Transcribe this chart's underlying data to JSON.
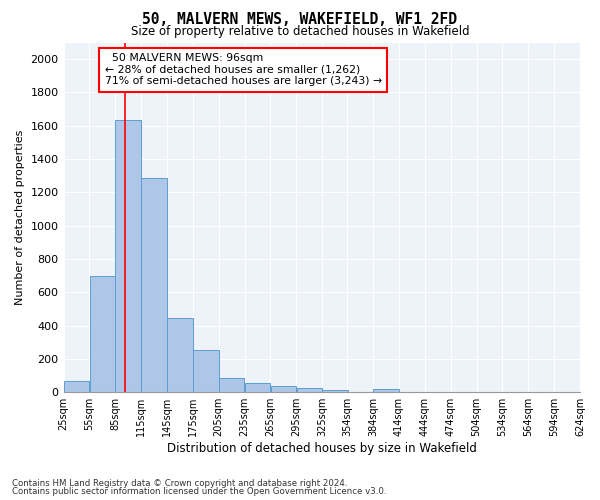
{
  "title": "50, MALVERN MEWS, WAKEFIELD, WF1 2FD",
  "subtitle": "Size of property relative to detached houses in Wakefield",
  "xlabel": "Distribution of detached houses by size in Wakefield",
  "ylabel": "Number of detached properties",
  "bar_color": "#aec6e8",
  "bar_edge_color": "#5a9fd4",
  "redline_value": 96,
  "annotation_text": "  50 MALVERN MEWS: 96sqm\n← 28% of detached houses are smaller (1,262)\n71% of semi-detached houses are larger (3,243) →",
  "bins": [
    25,
    55,
    85,
    115,
    145,
    175,
    205,
    235,
    265,
    295,
    325,
    354,
    384,
    414,
    444,
    474,
    504,
    534,
    564,
    594,
    624
  ],
  "bin_labels": [
    "25sqm",
    "55sqm",
    "85sqm",
    "115sqm",
    "145sqm",
    "175sqm",
    "205sqm",
    "235sqm",
    "265sqm",
    "295sqm",
    "325sqm",
    "354sqm",
    "384sqm",
    "414sqm",
    "444sqm",
    "474sqm",
    "504sqm",
    "534sqm",
    "564sqm",
    "594sqm",
    "624sqm"
  ],
  "values": [
    65,
    695,
    1635,
    1285,
    445,
    255,
    88,
    55,
    38,
    28,
    12,
    0,
    18,
    0,
    0,
    0,
    0,
    0,
    0,
    0
  ],
  "ylim": [
    0,
    2100
  ],
  "yticks": [
    0,
    200,
    400,
    600,
    800,
    1000,
    1200,
    1400,
    1600,
    1800,
    2000
  ],
  "footer_line1": "Contains HM Land Registry data © Crown copyright and database right 2024.",
  "footer_line2": "Contains public sector information licensed under the Open Government Licence v3.0.",
  "background_color": "#eef2f9"
}
